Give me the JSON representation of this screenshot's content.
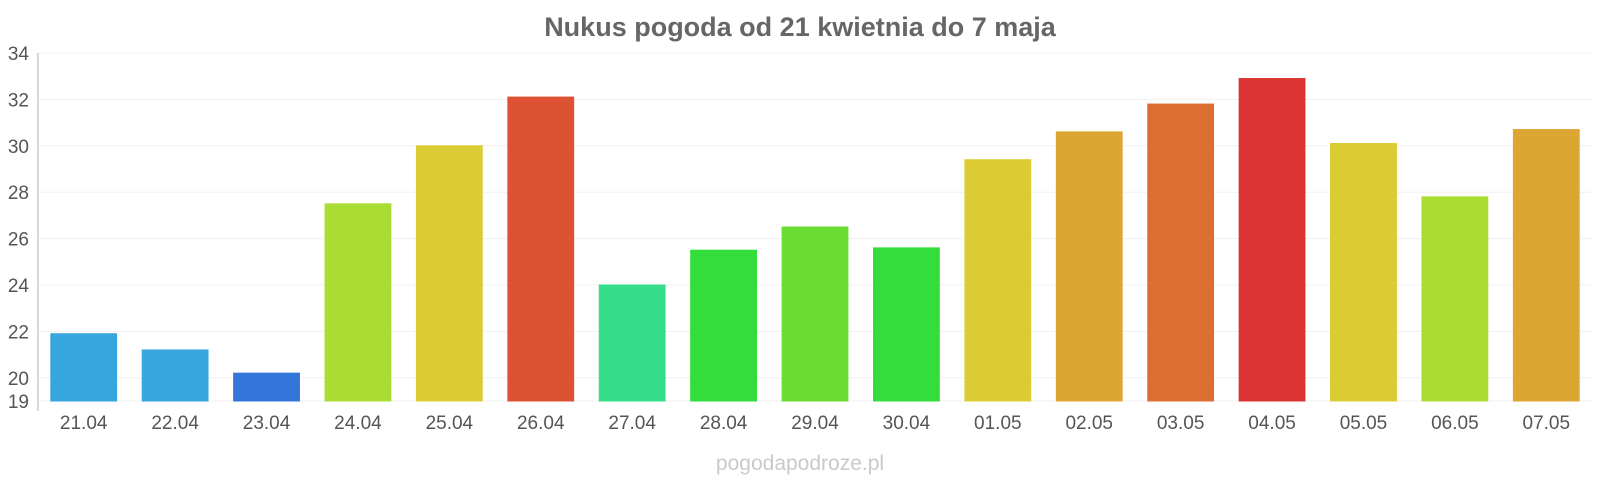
{
  "chart_data": {
    "type": "bar",
    "title": "Nukus pogoda od 21 kwietnia do 7 maja",
    "categories": [
      "21.04",
      "22.04",
      "23.04",
      "24.04",
      "25.04",
      "26.04",
      "27.04",
      "28.04",
      "29.04",
      "30.04",
      "01.05",
      "02.05",
      "03.05",
      "04.05",
      "05.05",
      "06.05",
      "07.05"
    ],
    "values": [
      21.9,
      21.2,
      20.2,
      27.5,
      30.0,
      32.1,
      24.0,
      25.5,
      26.5,
      25.6,
      29.4,
      30.6,
      31.8,
      32.9,
      30.1,
      27.8,
      30.7
    ],
    "colors": [
      "#36a6dc",
      "#36a6dc",
      "#3475da",
      "#aadd33",
      "#dccc33",
      "#dd5233",
      "#36dd8b",
      "#33dd3b",
      "#6add33",
      "#33dd3b",
      "#dccc33",
      "#dca633",
      "#dd6e33",
      "#dc3333",
      "#dccc33",
      "#aadd33",
      "#dca633"
    ],
    "ylim": [
      19,
      34
    ],
    "yticks": [
      19,
      20,
      22,
      24,
      26,
      28,
      30,
      32,
      34
    ],
    "grid": true,
    "xlabel": "",
    "ylabel": ""
  },
  "watermark": "pogodapodroze.pl"
}
